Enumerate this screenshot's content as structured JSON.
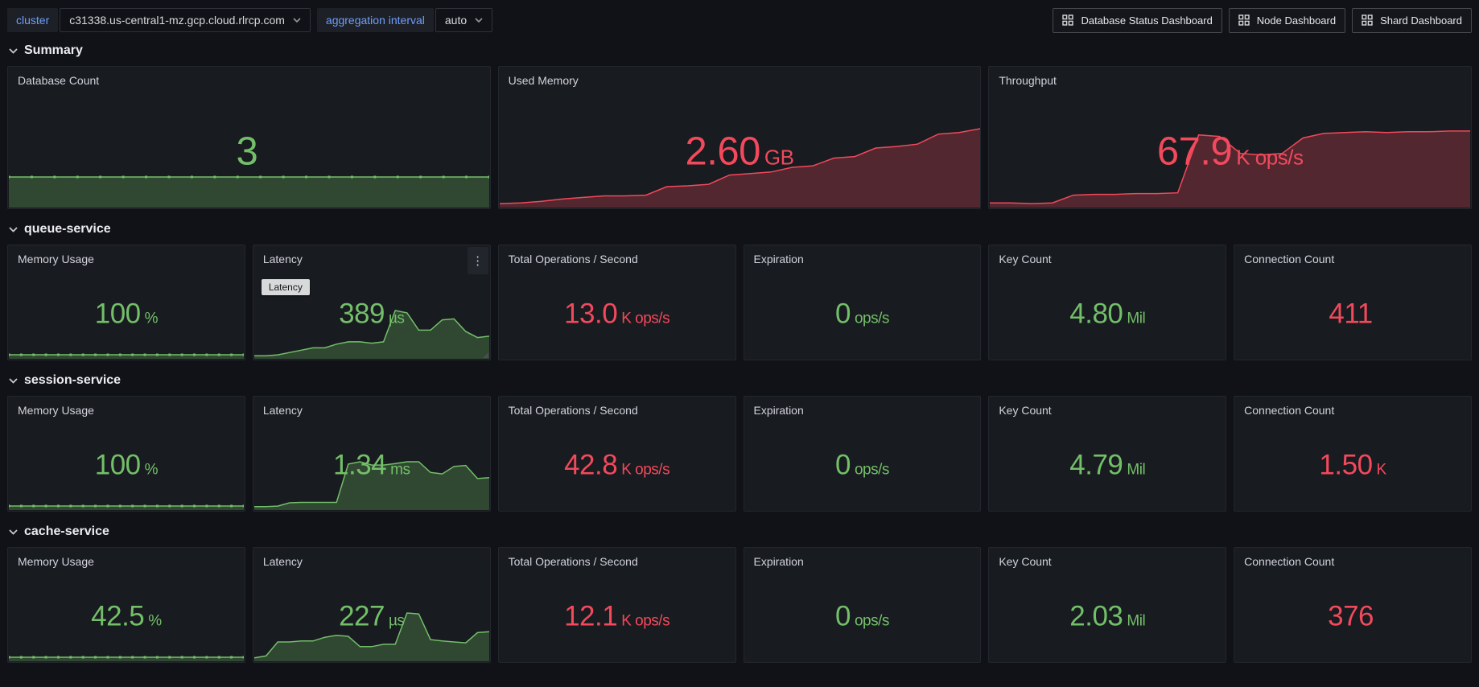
{
  "colors": {
    "green": "#73bf69",
    "red": "#f2495c",
    "blue": "#6e9fff",
    "panel_bg": "#181b1f",
    "page_bg": "#111217"
  },
  "icons": {
    "variable_caret": "chevron-down",
    "dashboard_link": "apps-grid",
    "section_toggle": "chevron-down",
    "panel_menu": "kebab-vertical",
    "kebab_glyph": "⋮"
  },
  "topbar": {
    "variables": [
      {
        "label": "cluster",
        "value": "c31338.us-central1-mz.gcp.cloud.rlrcp.com"
      },
      {
        "label": "aggregation interval",
        "value": "auto"
      }
    ],
    "links": [
      "Database Status Dashboard",
      "Node Dashboard",
      "Shard Dashboard"
    ]
  },
  "sections": [
    {
      "title": "Summary",
      "panels": [
        {
          "title": "Database Count",
          "value": "3",
          "unit": "",
          "color": "#73bf69",
          "spark": {
            "color": "#73bf69",
            "markers": true,
            "values": [
              1,
              1,
              1,
              1,
              1,
              1,
              1,
              1,
              1,
              1,
              1,
              1,
              1,
              1,
              1,
              1,
              1,
              1,
              1,
              1,
              1,
              1
            ]
          }
        },
        {
          "title": "Used Memory",
          "value": "2.60",
          "unit": "GB",
          "color": "#f2495c",
          "spark": {
            "color": "#f2495c",
            "markers": false,
            "values": [
              0.03,
              0.04,
              0.06,
              0.09,
              0.11,
              0.13,
              0.13,
              0.14,
              0.25,
              0.26,
              0.28,
              0.4,
              0.42,
              0.44,
              0.5,
              0.52,
              0.62,
              0.64,
              0.75,
              0.77,
              0.8,
              0.93,
              0.95,
              1.0
            ]
          }
        },
        {
          "title": "Throughput",
          "value": "67.9",
          "unit": "K ops/s",
          "color": "#f2495c",
          "spark": {
            "color": "#f2495c",
            "markers": false,
            "values": [
              0.04,
              0.04,
              0.03,
              0.04,
              0.14,
              0.15,
              0.15,
              0.16,
              0.16,
              0.17,
              0.92,
              0.9,
              0.68,
              0.66,
              0.68,
              0.88,
              0.94,
              0.95,
              0.96,
              0.95,
              0.96,
              0.96,
              0.97,
              0.97
            ]
          }
        }
      ]
    },
    {
      "title": "queue-service",
      "panels": [
        {
          "title": "Memory Usage",
          "value": "100",
          "unit": "%",
          "color": "#73bf69",
          "spark": {
            "color": "#73bf69",
            "markers": true,
            "values": [
              0.5,
              0.5,
              0.5,
              0.5,
              0.5,
              0.5,
              0.5,
              0.5,
              0.5,
              0.5,
              0.5,
              0.5,
              0.5,
              0.5,
              0.5,
              0.5,
              0.5,
              0.5,
              0.5,
              0.5
            ]
          }
        },
        {
          "title": "Latency",
          "value": "389",
          "unit": "µs",
          "color": "#73bf69",
          "tooltip": "Latency",
          "spark": {
            "color": "#73bf69",
            "markers": false,
            "values": [
              0.03,
              0.03,
              0.05,
              0.1,
              0.15,
              0.2,
              0.2,
              0.28,
              0.33,
              0.33,
              0.3,
              0.33,
              1.0,
              0.95,
              0.58,
              0.58,
              0.8,
              0.82,
              0.55,
              0.42,
              0.45
            ]
          }
        },
        {
          "title": "Total Operations / Second",
          "value": "13.0",
          "unit": "K ops/s",
          "color": "#f2495c"
        },
        {
          "title": "Expiration",
          "value": "0",
          "unit": "ops/s",
          "color": "#73bf69"
        },
        {
          "title": "Key Count",
          "value": "4.80",
          "unit": "Mil",
          "color": "#73bf69"
        },
        {
          "title": "Connection Count",
          "value": "411",
          "unit": "",
          "color": "#f2495c"
        }
      ]
    },
    {
      "title": "session-service",
      "panels": [
        {
          "title": "Memory Usage",
          "value": "100",
          "unit": "%",
          "color": "#73bf69",
          "spark": {
            "color": "#73bf69",
            "markers": true,
            "values": [
              0.5,
              0.5,
              0.5,
              0.5,
              0.5,
              0.5,
              0.5,
              0.5,
              0.5,
              0.5,
              0.5,
              0.5,
              0.5,
              0.5,
              0.5,
              0.5,
              0.5,
              0.5,
              0.5,
              0.5
            ]
          }
        },
        {
          "title": "Latency",
          "value": "1.34",
          "unit": "ms",
          "color": "#73bf69",
          "spark": {
            "color": "#73bf69",
            "markers": false,
            "values": [
              0.04,
              0.04,
              0.05,
              0.12,
              0.13,
              0.13,
              0.13,
              0.13,
              0.95,
              1.0,
              0.93,
              0.93,
              0.96,
              1.0,
              1.0,
              0.77,
              0.74,
              0.9,
              0.92,
              0.64,
              0.66
            ]
          }
        },
        {
          "title": "Total Operations / Second",
          "value": "42.8",
          "unit": "K ops/s",
          "color": "#f2495c"
        },
        {
          "title": "Expiration",
          "value": "0",
          "unit": "ops/s",
          "color": "#73bf69"
        },
        {
          "title": "Key Count",
          "value": "4.79",
          "unit": "Mil",
          "color": "#73bf69"
        },
        {
          "title": "Connection Count",
          "value": "1.50",
          "unit": "K",
          "color": "#f2495c"
        }
      ]
    },
    {
      "title": "cache-service",
      "panels": [
        {
          "title": "Memory Usage",
          "value": "42.5",
          "unit": "%",
          "color": "#73bf69",
          "spark": {
            "color": "#73bf69",
            "markers": true,
            "values": [
              0.5,
              0.5,
              0.5,
              0.5,
              0.5,
              0.5,
              0.5,
              0.5,
              0.5,
              0.5,
              0.5,
              0.5,
              0.5,
              0.5,
              0.5,
              0.5,
              0.5,
              0.5,
              0.5,
              0.5
            ]
          }
        },
        {
          "title": "Latency",
          "value": "227",
          "unit": "µs",
          "color": "#73bf69",
          "spark": {
            "color": "#73bf69",
            "markers": false,
            "values": [
              0.04,
              0.08,
              0.38,
              0.38,
              0.4,
              0.4,
              0.48,
              0.52,
              0.5,
              0.28,
              0.28,
              0.33,
              0.33,
              1.0,
              0.98,
              0.43,
              0.4,
              0.38,
              0.36,
              0.58,
              0.6
            ]
          }
        },
        {
          "title": "Total Operations / Second",
          "value": "12.1",
          "unit": "K ops/s",
          "color": "#f2495c"
        },
        {
          "title": "Expiration",
          "value": "0",
          "unit": "ops/s",
          "color": "#73bf69"
        },
        {
          "title": "Key Count",
          "value": "2.03",
          "unit": "Mil",
          "color": "#73bf69"
        },
        {
          "title": "Connection Count",
          "value": "376",
          "unit": "",
          "color": "#f2495c"
        }
      ]
    }
  ]
}
